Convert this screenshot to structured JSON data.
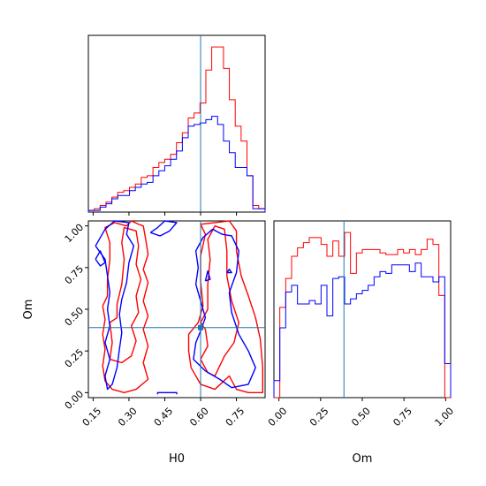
{
  "chart_data": {
    "type": "corner",
    "colors": {
      "series_a": "#ff0000",
      "series_b": "#0000ff",
      "truth": "#1f77b4"
    },
    "truth": {
      "H0": 0.6,
      "Om": 0.39
    },
    "axes": {
      "H0": {
        "label": "H0",
        "range": [
          0.13,
          0.87
        ],
        "ticks": [
          0.15,
          0.3,
          0.45,
          0.6,
          0.75
        ],
        "tick_labels": [
          "0.15",
          "0.30",
          "0.45",
          "0.60",
          "0.75"
        ]
      },
      "Om": {
        "label": "Om",
        "range": [
          -0.03,
          1.03
        ],
        "ticks": [
          0.0,
          0.25,
          0.5,
          0.75,
          1.0
        ],
        "tick_labels": [
          "0.00",
          "0.25",
          "0.50",
          "0.75",
          "1.00"
        ]
      }
    },
    "hist_H0": {
      "bin_edges": [
        0.13,
        0.1546,
        0.1792,
        0.2038,
        0.2284,
        0.253,
        0.2776,
        0.3022,
        0.3268,
        0.3514,
        0.376,
        0.4006,
        0.4252,
        0.4498,
        0.4744,
        0.499,
        0.5236,
        0.5482,
        0.5728,
        0.5974,
        0.622,
        0.6466,
        0.6712,
        0.6958,
        0.7204,
        0.745,
        0.7696,
        0.7942,
        0.8188,
        0.8434,
        0.87
      ],
      "series": [
        {
          "name": "",
          "color": "#ff0000",
          "values": [
            1,
            2,
            4,
            6,
            9,
            12,
            13,
            15,
            17,
            21,
            22,
            27,
            30,
            32,
            35,
            42,
            48,
            57,
            60,
            66,
            86,
            100,
            100,
            87,
            68,
            52,
            43,
            22,
            4,
            2
          ]
        },
        {
          "name": "",
          "color": "#0000ff",
          "values": [
            1,
            1,
            3,
            5,
            8,
            10,
            10,
            13,
            15,
            17,
            18,
            22,
            25,
            28,
            32,
            37,
            45,
            52,
            53,
            54,
            56,
            58,
            53,
            43,
            36,
            27,
            27,
            22,
            2,
            2
          ]
        }
      ]
    },
    "hist_Om": {
      "bin_edges": [
        -0.03,
        0.0053,
        0.0407,
        0.076,
        0.1113,
        0.1467,
        0.182,
        0.2173,
        0.2527,
        0.288,
        0.3233,
        0.3587,
        0.394,
        0.4293,
        0.4647,
        0.5,
        0.5353,
        0.5707,
        0.606,
        0.6413,
        0.6767,
        0.712,
        0.7473,
        0.7827,
        0.818,
        0.8533,
        0.8887,
        0.924,
        0.9593,
        0.9947,
        1.03
      ],
      "series": [
        {
          "name": "",
          "color": "#ff0000",
          "values": [
            0,
            53,
            70,
            83,
            88,
            91,
            94,
            94,
            90,
            83,
            92,
            83,
            97,
            73,
            85,
            87,
            87,
            87,
            85,
            84,
            84,
            87,
            85,
            87,
            84,
            87,
            93,
            90,
            60,
            0
          ]
        },
        {
          "name": "",
          "color": "#0000ff",
          "values": [
            10,
            41,
            62,
            66,
            55,
            55,
            57,
            55,
            66,
            48,
            70,
            71,
            55,
            58,
            61,
            63,
            66,
            71,
            74,
            73,
            78,
            78,
            78,
            74,
            79,
            71,
            71,
            68,
            71,
            20
          ]
        }
      ]
    },
    "contours": [
      {
        "color": "#ff0000",
        "points": [
          [
            0.22,
            0.42
          ],
          [
            0.25,
            0.45
          ],
          [
            0.25,
            0.53
          ],
          [
            0.27,
            0.65
          ],
          [
            0.28,
            0.8
          ],
          [
            0.27,
            0.9
          ],
          [
            0.28,
            0.99
          ],
          [
            0.33,
            0.97
          ],
          [
            0.34,
            0.88
          ],
          [
            0.33,
            0.77
          ],
          [
            0.35,
            0.68
          ],
          [
            0.33,
            0.58
          ],
          [
            0.34,
            0.48
          ],
          [
            0.31,
            0.4
          ],
          [
            0.33,
            0.31
          ],
          [
            0.31,
            0.22
          ],
          [
            0.27,
            0.18
          ],
          [
            0.22,
            0.2
          ],
          [
            0.23,
            0.3
          ],
          [
            0.22,
            0.42
          ]
        ]
      },
      {
        "color": "#ff0000",
        "points": [
          [
            0.19,
            0.52
          ],
          [
            0.21,
            0.58
          ],
          [
            0.21,
            0.68
          ],
          [
            0.22,
            0.8
          ],
          [
            0.22,
            0.9
          ],
          [
            0.2,
            0.99
          ],
          [
            0.24,
            1.02
          ],
          [
            0.29,
            1.0
          ],
          [
            0.31,
            1.03
          ],
          [
            0.34,
            1.01
          ],
          [
            0.36,
            1.0
          ],
          [
            0.37,
            0.92
          ],
          [
            0.38,
            0.83
          ],
          [
            0.36,
            0.74
          ],
          [
            0.38,
            0.66
          ],
          [
            0.36,
            0.55
          ],
          [
            0.38,
            0.46
          ],
          [
            0.36,
            0.38
          ],
          [
            0.38,
            0.28
          ],
          [
            0.36,
            0.18
          ],
          [
            0.38,
            0.08
          ],
          [
            0.33,
            0.02
          ],
          [
            0.28,
            0.0
          ],
          [
            0.23,
            0.02
          ],
          [
            0.2,
            0.07
          ],
          [
            0.19,
            0.16
          ],
          [
            0.2,
            0.26
          ],
          [
            0.19,
            0.35
          ],
          [
            0.2,
            0.44
          ],
          [
            0.19,
            0.52
          ]
        ]
      },
      {
        "color": "#ff0000",
        "points": [
          [
            0.6,
            0.2
          ],
          [
            0.63,
            0.28
          ],
          [
            0.62,
            0.38
          ],
          [
            0.6,
            0.42
          ],
          [
            0.63,
            0.5
          ],
          [
            0.63,
            0.65
          ],
          [
            0.64,
            0.8
          ],
          [
            0.63,
            0.92
          ],
          [
            0.66,
            1.0
          ],
          [
            0.7,
            0.98
          ],
          [
            0.71,
            0.85
          ],
          [
            0.71,
            0.7
          ],
          [
            0.73,
            0.55
          ],
          [
            0.76,
            0.42
          ],
          [
            0.74,
            0.3
          ],
          [
            0.7,
            0.22
          ],
          [
            0.66,
            0.1
          ],
          [
            0.63,
            0.12
          ],
          [
            0.6,
            0.2
          ]
        ]
      },
      {
        "color": "#ff0000",
        "points": [
          [
            0.55,
            0.35
          ],
          [
            0.59,
            0.42
          ],
          [
            0.61,
            0.52
          ],
          [
            0.6,
            0.67
          ],
          [
            0.6,
            0.82
          ],
          [
            0.62,
            0.95
          ],
          [
            0.6,
            1.01
          ],
          [
            0.72,
            1.03
          ],
          [
            0.75,
            0.97
          ],
          [
            0.75,
            0.85
          ],
          [
            0.77,
            0.7
          ],
          [
            0.8,
            0.58
          ],
          [
            0.83,
            0.45
          ],
          [
            0.85,
            0.32
          ],
          [
            0.86,
            0.15
          ],
          [
            0.86,
            0.0
          ],
          [
            0.8,
            0.0
          ],
          [
            0.75,
            0.02
          ],
          [
            0.72,
            0.1
          ],
          [
            0.66,
            0.02
          ],
          [
            0.6,
            0.05
          ],
          [
            0.56,
            0.15
          ],
          [
            0.55,
            0.25
          ],
          [
            0.55,
            0.35
          ]
        ]
      },
      {
        "color": "#0000ff",
        "points": [
          [
            0.6,
            0.37
          ],
          [
            0.62,
            0.45
          ],
          [
            0.6,
            0.55
          ],
          [
            0.58,
            0.65
          ],
          [
            0.59,
            0.75
          ],
          [
            0.58,
            0.85
          ],
          [
            0.61,
            0.93
          ],
          [
            0.65,
            0.98
          ],
          [
            0.69,
            0.95
          ],
          [
            0.73,
            0.94
          ],
          [
            0.76,
            0.85
          ],
          [
            0.75,
            0.72
          ],
          [
            0.72,
            0.6
          ],
          [
            0.73,
            0.48
          ],
          [
            0.76,
            0.35
          ],
          [
            0.8,
            0.25
          ],
          [
            0.83,
            0.15
          ],
          [
            0.8,
            0.05
          ],
          [
            0.73,
            0.03
          ],
          [
            0.68,
            0.08
          ],
          [
            0.62,
            0.13
          ],
          [
            0.57,
            0.2
          ],
          [
            0.58,
            0.3
          ],
          [
            0.6,
            0.37
          ]
        ]
      },
      {
        "color": "#0000ff",
        "points": [
          [
            0.16,
            0.88
          ],
          [
            0.2,
            0.98
          ],
          [
            0.24,
            1.03
          ],
          [
            0.3,
            1.02
          ],
          [
            0.29,
            0.95
          ],
          [
            0.32,
            0.88
          ],
          [
            0.3,
            0.78
          ],
          [
            0.29,
            0.66
          ],
          [
            0.27,
            0.56
          ],
          [
            0.26,
            0.47
          ],
          [
            0.27,
            0.36
          ],
          [
            0.26,
            0.26
          ],
          [
            0.25,
            0.15
          ],
          [
            0.23,
            0.05
          ],
          [
            0.21,
            0.02
          ],
          [
            0.2,
            0.1
          ],
          [
            0.22,
            0.2
          ],
          [
            0.2,
            0.3
          ],
          [
            0.22,
            0.4
          ],
          [
            0.21,
            0.5
          ],
          [
            0.22,
            0.6
          ],
          [
            0.21,
            0.7
          ],
          [
            0.2,
            0.8
          ],
          [
            0.16,
            0.88
          ]
        ]
      },
      {
        "color": "#0000ff",
        "points": [
          [
            0.39,
            0.96
          ],
          [
            0.42,
            0.99
          ],
          [
            0.45,
            1.03
          ],
          [
            0.5,
            1.02
          ],
          [
            0.47,
            0.97
          ],
          [
            0.43,
            0.94
          ],
          [
            0.39,
            0.96
          ]
        ]
      },
      {
        "color": "#0000ff",
        "points": [
          [
            0.42,
            -0.01
          ],
          [
            0.42,
            0.0
          ],
          [
            0.5,
            0.0
          ],
          [
            0.5,
            -0.01
          ]
        ]
      },
      {
        "color": "#0000ff",
        "points": [
          [
            0.16,
            0.8
          ],
          [
            0.18,
            0.85
          ],
          [
            0.2,
            0.78
          ],
          [
            0.18,
            0.76
          ],
          [
            0.16,
            0.8
          ]
        ]
      },
      {
        "color": "#0000ff",
        "points": [
          [
            0.62,
            0.67
          ],
          [
            0.63,
            0.73
          ],
          [
            0.64,
            0.68
          ],
          [
            0.62,
            0.67
          ]
        ]
      },
      {
        "color": "#0000ff",
        "points": [
          [
            0.71,
            0.72
          ],
          [
            0.72,
            0.74
          ],
          [
            0.73,
            0.72
          ],
          [
            0.71,
            0.72
          ]
        ]
      }
    ]
  }
}
